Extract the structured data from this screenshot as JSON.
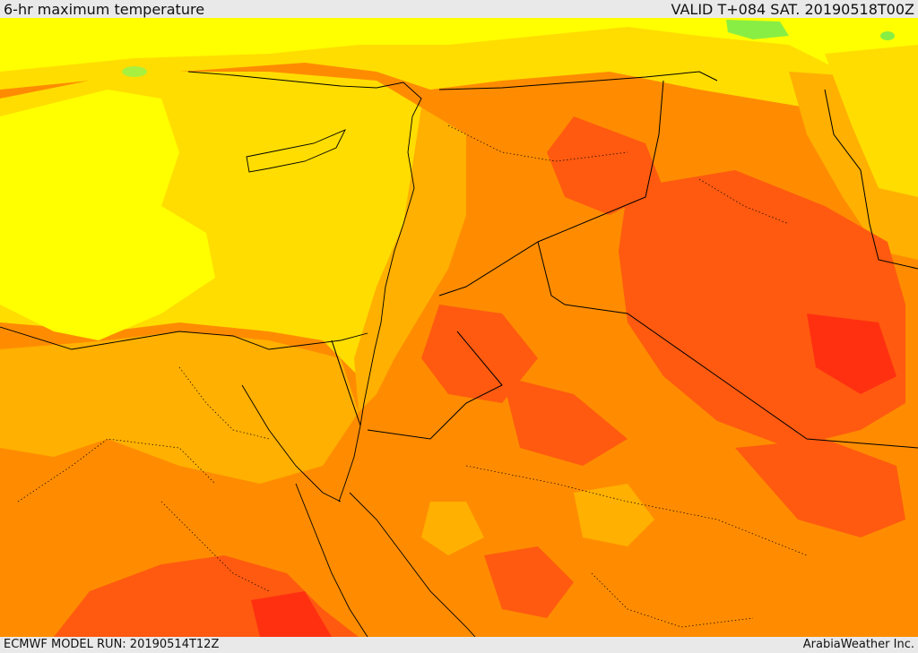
{
  "header": {
    "title": "6-hr maximum temperature",
    "valid": "VALID T+084 SAT. 20190518T00Z"
  },
  "footer": {
    "model_run": "ECMWF MODEL RUN: 20190514T12Z",
    "credit": "ArabiaWeather Inc."
  },
  "colors": {
    "pale_yellow": "#ffff00",
    "gold": "#ffdd00",
    "light_orange": "#ffb000",
    "orange": "#ff8c00",
    "red_orange": "#ff5a10",
    "red": "#ff3010",
    "green": "#88ee44",
    "border": "#000000"
  }
}
